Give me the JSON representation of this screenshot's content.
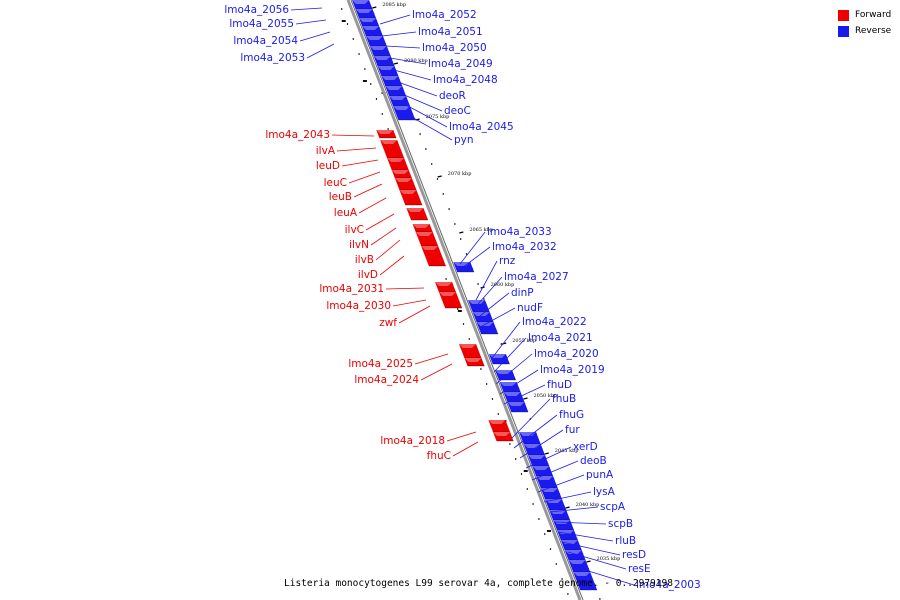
{
  "caption": "Listeria monocytogenes L99 serovar 4a, complete genome. - 0..2979198",
  "legend": [
    {
      "label": "Forward",
      "color": "#ee0000"
    },
    {
      "label": "Reverse",
      "color": "#1a1aee"
    }
  ],
  "colors": {
    "forward": "#ee0000",
    "reverse": "#1a1aee",
    "axis": "#999999"
  },
  "ticks": [
    "2085 kbp",
    "2080 kbp",
    "2075 kbp",
    "2070 kbp",
    "2065 kbp",
    "2060 kbp",
    "2055 kbp",
    "2050 kbp",
    "2045 kbp",
    "2040 kbp",
    "2035 kbp"
  ],
  "forward_genes": [
    "lmo4a_2043",
    "ilvA",
    "leuD",
    "leuC",
    "leuB",
    "leuA",
    "ilvC",
    "ilvN",
    "ilvB",
    "ilvD",
    "lmo4a_2031",
    "lmo4a_2030",
    "zwf",
    "lmo4a_2025",
    "lmo4a_2024",
    "lmo4a_2018",
    "fhuC"
  ],
  "reverse_genes_top_left": [
    "lmo4a_2056",
    "lmo4a_2055",
    "lmo4a_2054",
    "lmo4a_2053"
  ],
  "reverse_genes_right": [
    "lmo4a_2052",
    "lmo4a_2051",
    "lmo4a_2050",
    "lmo4a_2049",
    "lmo4a_2048",
    "deoR",
    "deoC",
    "lmo4a_2045",
    "pyn",
    "lmo4a_2033",
    "lmo4a_2032",
    "rnz",
    "lmo4a_2027",
    "dinP",
    "nudF",
    "lmo4a_2022",
    "lmo4a_2021",
    "lmo4a_2020",
    "lmo4a_2019",
    "fhuD",
    "fhuB",
    "fhuG",
    "fur",
    "xerD",
    "deoB",
    "punA",
    "lysA",
    "scpA",
    "scpB",
    "rluB",
    "resD",
    "resE",
    "lmo4a_2003"
  ]
}
